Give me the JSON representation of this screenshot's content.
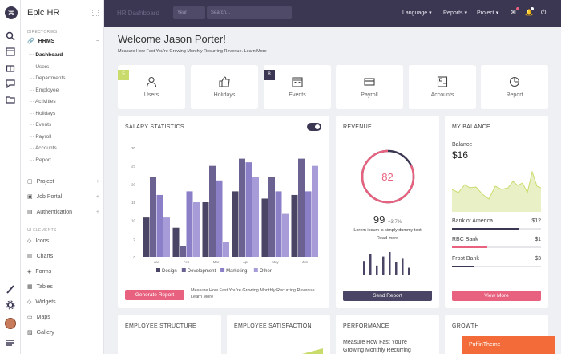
{
  "brand": "Epic HR",
  "colors": {
    "dark": "#3b3752",
    "pink": "#e8627f",
    "lime": "#c9dc6b",
    "purple": "#8b7fc7",
    "light_purple": "#a79bd8"
  },
  "rail_icons": [
    "logo-icon",
    "search-icon",
    "calendar-icon",
    "gift-icon",
    "chat-icon",
    "folder-icon",
    "brush-icon",
    "gear-icon",
    "avatar",
    "menu-icon"
  ],
  "sidebar": {
    "directories": "DIRECTORIES",
    "hrms": "HRMS",
    "sub": [
      "Dashboard",
      "Users",
      "Departments",
      "Employee",
      "Activities",
      "Holidays",
      "Events",
      "Payroll",
      "Accounts",
      "Report"
    ],
    "groups": [
      "Project",
      "Job Portal",
      "Authentication"
    ],
    "ui_elements": "UI ELEMENTS",
    "ui_items": [
      "Icons",
      "Charts",
      "Forms",
      "Tables",
      "Widgets",
      "Maps",
      "Gallery"
    ]
  },
  "topbar": {
    "title": "HR Dashboard",
    "year": "Year",
    "search": "Search...",
    "nav": [
      "Language",
      "Reports",
      "Project"
    ]
  },
  "welcome": {
    "title": "Welcome Jason Porter!",
    "subtitle": "Measure How Fast You're Growing Monthly Recurring Revenue.",
    "link": "Learn More"
  },
  "quick": [
    {
      "label": "Users",
      "icon": "users-icon",
      "badge": "5"
    },
    {
      "label": "Holidays",
      "icon": "thumbs-up-icon",
      "badge": ""
    },
    {
      "label": "Events",
      "icon": "calendar-icon",
      "badge": "8"
    },
    {
      "label": "Payroll",
      "icon": "credit-card-icon",
      "badge": ""
    },
    {
      "label": "Accounts",
      "icon": "calculator-icon",
      "badge": ""
    },
    {
      "label": "Report",
      "icon": "pie-icon",
      "badge": ""
    }
  ],
  "salary": {
    "title": "SALARY STATISTICS",
    "button": "Generate Report",
    "note": "Measure How Fast You're Growing Monthly Recurring Revenue.",
    "link": "Learn More"
  },
  "chart_data": {
    "type": "bar",
    "categories": [
      "Jan",
      "Feb",
      "Mar",
      "Apr",
      "May",
      "Jun"
    ],
    "yticks": [
      "0",
      "5",
      "10",
      "15",
      "20",
      "25",
      "30"
    ],
    "ylim": [
      0,
      30
    ],
    "series": [
      {
        "name": "Design",
        "color": "#4a4564",
        "values": [
          11,
          8,
          15,
          18,
          16,
          17
        ]
      },
      {
        "name": "Development",
        "color": "#6c6291",
        "values": [
          22,
          3,
          25,
          27,
          22,
          27
        ]
      },
      {
        "name": "Marketing",
        "color": "#8b7fc7",
        "values": [
          17,
          18,
          21,
          26,
          18,
          18
        ]
      },
      {
        "name": "Other",
        "color": "#a79bd8",
        "values": [
          11,
          15,
          4,
          22,
          12,
          25
        ]
      }
    ]
  },
  "revenue": {
    "title": "REVENUE",
    "value": "82",
    "fraction": 0.82,
    "stat": "99",
    "stat_change": "+3.7%",
    "desc": "Lorem ipsum is simply dummy text",
    "link": "Read more",
    "bars": [
      0.6,
      0.9,
      0.4,
      0.8,
      1.0,
      0.55,
      0.7,
      0.3
    ],
    "button": "Send Report"
  },
  "balance": {
    "title": "MY BALANCE",
    "label": "Balance",
    "amount": "$16",
    "button": "View More",
    "accounts": [
      {
        "name": "Bank of America",
        "value": "$12",
        "fill": 0.75
      },
      {
        "name": "RBC Bank",
        "value": "$1",
        "fill": 0.4
      },
      {
        "name": "Frost Bank",
        "value": "$3",
        "fill": 0.25
      }
    ]
  },
  "bottom": {
    "employee_structure": "EMPLOYEE STRUCTURE",
    "employee_satisfaction": "EMPLOYEE SATISFACTION",
    "performance": "PERFORMANCE",
    "performance_text": "Measure How Fast You're Growing Monthly Recurring",
    "growth": "GROWTH"
  },
  "puffin": "PuffinTheme"
}
